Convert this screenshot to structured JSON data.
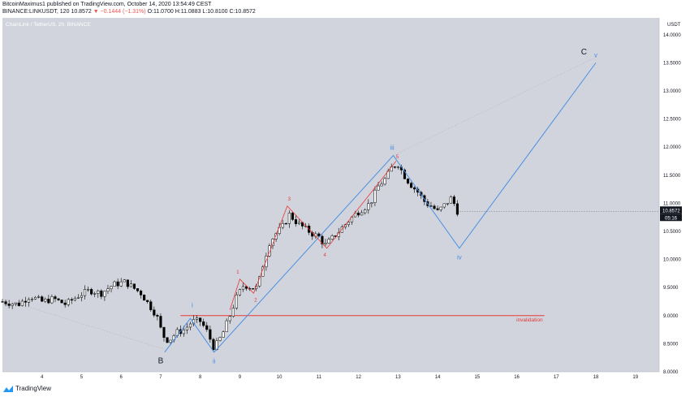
{
  "header": {
    "line1": "BitcoinMaximus1 published on TradingView.com, October 14, 2020 13:54:49 CEST",
    "line2_symbol": "BINANCE:LINKUSDT, 120",
    "line2_last": "10.8572",
    "line2_change": "▼ −0.1444 (−1.31%)",
    "line2_ohlc": "O:11.0700 H:11.0883 L:10.8100 C:10.8572"
  },
  "footer": {
    "brand": "TradingView"
  },
  "colors": {
    "background": "#d1d4dc",
    "up_candle": "#ffffff",
    "down_candle": "#000000",
    "wave_blue": "#4a90e2",
    "wave_red": "#e53935",
    "invalidation": "#e53935",
    "price_label_bg": "#131722"
  },
  "chart_data": {
    "type": "candlestick",
    "title": "ChainLink / TetherUS, 2h, BINANCE",
    "currency_label": "USDT",
    "ylim": [
      8.0,
      14.3
    ],
    "xlim": [
      3.0,
      19.6
    ],
    "x_tick_labels": [
      "4",
      "5",
      "6",
      "7",
      "8",
      "9",
      "10",
      "11",
      "12",
      "13",
      "14",
      "15",
      "16",
      "17",
      "18",
      "19"
    ],
    "y_tick_labels": [
      "8.0000",
      "8.5000",
      "9.0000",
      "9.5000",
      "10.0000",
      "10.5000",
      "11.0000",
      "11.5000",
      "12.0000",
      "12.5000",
      "13.0000",
      "13.5000",
      "14.0000"
    ],
    "last_price": "10.8572",
    "countdown": "05:16",
    "price_path": [
      [
        3.0,
        9.25
      ],
      [
        3.4,
        9.2
      ],
      [
        3.7,
        9.35
      ],
      [
        4.0,
        9.25
      ],
      [
        4.3,
        9.3
      ],
      [
        4.6,
        9.2
      ],
      [
        4.9,
        9.35
      ],
      [
        5.2,
        9.45
      ],
      [
        5.5,
        9.4
      ],
      [
        5.8,
        9.55
      ],
      [
        6.1,
        9.6
      ],
      [
        6.3,
        9.5
      ],
      [
        6.5,
        9.4
      ],
      [
        6.7,
        9.2
      ],
      [
        6.9,
        9.0
      ],
      [
        7.05,
        8.65
      ],
      [
        7.2,
        8.55
      ],
      [
        7.4,
        8.7
      ],
      [
        7.6,
        8.75
      ],
      [
        7.8,
        8.9
      ],
      [
        8.0,
        8.9
      ],
      [
        8.15,
        8.75
      ],
      [
        8.35,
        8.42
      ],
      [
        8.55,
        8.65
      ],
      [
        8.75,
        9.0
      ],
      [
        8.9,
        9.3
      ],
      [
        9.1,
        9.55
      ],
      [
        9.3,
        9.5
      ],
      [
        9.45,
        9.5
      ],
      [
        9.6,
        9.95
      ],
      [
        9.75,
        10.3
      ],
      [
        9.9,
        10.45
      ],
      [
        10.1,
        10.6
      ],
      [
        10.25,
        10.8
      ],
      [
        10.45,
        10.65
      ],
      [
        10.65,
        10.55
      ],
      [
        10.85,
        10.45
      ],
      [
        11.0,
        10.4
      ],
      [
        11.15,
        10.25
      ],
      [
        11.3,
        10.35
      ],
      [
        11.5,
        10.5
      ],
      [
        11.7,
        10.65
      ],
      [
        11.9,
        10.8
      ],
      [
        12.1,
        10.9
      ],
      [
        12.3,
        11.0
      ],
      [
        12.5,
        11.3
      ],
      [
        12.7,
        11.45
      ],
      [
        12.85,
        11.65
      ],
      [
        13.0,
        11.7
      ],
      [
        13.15,
        11.5
      ],
      [
        13.3,
        11.35
      ],
      [
        13.5,
        11.2
      ],
      [
        13.7,
        11.0
      ],
      [
        13.85,
        10.95
      ],
      [
        14.0,
        10.85
      ],
      [
        14.15,
        10.95
      ],
      [
        14.35,
        11.1
      ],
      [
        14.5,
        10.86
      ]
    ],
    "wave_blue": [
      [
        7.1,
        8.35
      ],
      [
        7.75,
        8.95
      ],
      [
        8.35,
        8.35
      ],
      [
        12.88,
        11.85
      ],
      [
        14.55,
        10.2
      ],
      [
        18.0,
        13.5
      ]
    ],
    "wave_blue_extension": [
      [
        12.88,
        11.85
      ],
      [
        18.0,
        13.6
      ]
    ],
    "wave_red": [
      [
        8.75,
        9.1
      ],
      [
        9.0,
        9.65
      ],
      [
        9.35,
        9.4
      ],
      [
        10.2,
        10.95
      ],
      [
        11.2,
        10.2
      ],
      [
        12.95,
        11.75
      ]
    ],
    "invalidation": {
      "label": "invalidation",
      "x_start": 7.5,
      "x_end": 16.7,
      "y": 9.0
    },
    "labels": [
      {
        "text": "B",
        "x": 7.0,
        "y": 8.15,
        "color": "#131722",
        "size": 10
      },
      {
        "text": "i",
        "x": 7.8,
        "y": 9.15,
        "color": "#4a90e2",
        "size": 8
      },
      {
        "text": "ii",
        "x": 8.35,
        "y": 8.15,
        "color": "#4a90e2",
        "size": 8
      },
      {
        "text": "iii",
        "x": 12.85,
        "y": 11.95,
        "color": "#4a90e2",
        "size": 8
      },
      {
        "text": "iv",
        "x": 14.55,
        "y": 10.0,
        "color": "#4a90e2",
        "size": 8
      },
      {
        "text": "v",
        "x": 18.0,
        "y": 13.6,
        "color": "#4a90e2",
        "size": 8
      },
      {
        "text": "C",
        "x": 17.7,
        "y": 13.65,
        "color": "#131722",
        "size": 10
      },
      {
        "text": "1",
        "x": 8.95,
        "y": 9.75,
        "color": "#e53935",
        "size": 6
      },
      {
        "text": "2",
        "x": 9.4,
        "y": 9.25,
        "color": "#e53935",
        "size": 6
      },
      {
        "text": "3",
        "x": 10.25,
        "y": 11.05,
        "color": "#e53935",
        "size": 6
      },
      {
        "text": "4",
        "x": 11.15,
        "y": 10.05,
        "color": "#e53935",
        "size": 6
      },
      {
        "text": "5",
        "x": 12.98,
        "y": 11.8,
        "color": "#e53935",
        "size": 6
      }
    ]
  }
}
